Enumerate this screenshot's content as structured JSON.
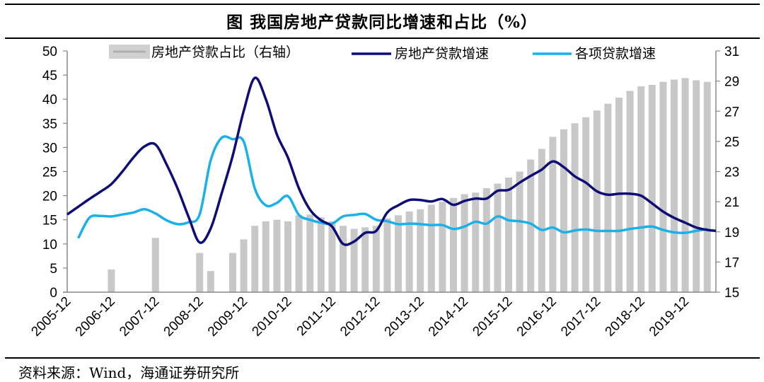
{
  "title": "图  我国房地产贷款同比增速和占比（%）",
  "source": "资料来源：Wind，海通证券研究所",
  "chart_data": {
    "type": "bar+line",
    "title": "图  我国房地产贷款同比增速和占比（%）",
    "xlabel": "",
    "ylabel": "",
    "ylim_left": [
      0,
      50
    ],
    "yticks_left": [
      "0",
      "5",
      "10",
      "15",
      "20",
      "25",
      "30",
      "35",
      "40",
      "45",
      "50"
    ],
    "ylim_right": [
      15,
      31
    ],
    "yticks_right": [
      "15",
      "17",
      "19",
      "21",
      "23",
      "25",
      "27",
      "29",
      "31"
    ],
    "xtick_labels": [
      "2005-12",
      "2006-12",
      "2007-12",
      "2008-12",
      "2009-12",
      "2010-12",
      "2011-12",
      "2012-12",
      "2013-12",
      "2014-12",
      "2015-12",
      "2016-12",
      "2017-12",
      "2018-12",
      "2019-12"
    ],
    "legend_position": "top",
    "periods_note": "quarterly, 2005-12 to 2020-06",
    "series": [
      {
        "name": "房地产贷款占比（右轴）",
        "type": "bar",
        "axis": "right",
        "color": "#c8c8c8",
        "values": [
          null,
          null,
          null,
          null,
          16.5,
          null,
          null,
          null,
          18.6,
          null,
          null,
          null,
          17.6,
          16.4,
          null,
          17.6,
          18.5,
          19.4,
          19.7,
          19.8,
          19.7,
          20.1,
          20.15,
          19.96,
          19.7,
          19.4,
          19.2,
          19.3,
          19.4,
          19.9,
          20.1,
          20.35,
          20.5,
          20.8,
          21.0,
          21.25,
          21.5,
          21.6,
          21.9,
          22.2,
          22.6,
          23.0,
          23.8,
          24.5,
          25.3,
          25.8,
          26.2,
          26.6,
          27.05,
          27.5,
          27.9,
          28.35,
          28.65,
          28.75,
          28.95,
          29.1,
          29.2,
          29.05,
          28.95
        ]
      },
      {
        "name": "房地产贷款增速",
        "type": "line",
        "axis": "left",
        "color": "#0d0d78",
        "values": [
          16.1,
          17.7,
          19.3,
          20.8,
          22.4,
          25.0,
          27.9,
          30.2,
          30.6,
          26.5,
          21.5,
          15.6,
          10.3,
          13.2,
          20.5,
          28.3,
          37.6,
          44.4,
          40.0,
          32.7,
          27.9,
          21.5,
          17.1,
          14.9,
          13.6,
          10.0,
          10.5,
          12.3,
          12.7,
          16.5,
          18.0,
          19.1,
          19.1,
          18.8,
          19.3,
          18.1,
          18.9,
          19.4,
          19.4,
          21.0,
          21.2,
          22.7,
          24.1,
          25.4,
          27.1,
          25.9,
          24.0,
          22.7,
          20.9,
          20.2,
          20.4,
          20.4,
          20.0,
          18.4,
          16.7,
          15.4,
          14.4,
          13.4,
          12.9
        ]
      },
      {
        "name": "各项贷款增速",
        "type": "line",
        "axis": "left",
        "color": "#1ab0ea",
        "values": [
          null,
          11.2,
          15.4,
          15.8,
          15.7,
          16.1,
          16.5,
          17.2,
          16.3,
          14.9,
          14.1,
          14.5,
          16.1,
          27.3,
          32.0,
          31.7,
          31.2,
          21.5,
          18.0,
          18.5,
          19.9,
          16.0,
          15.0,
          14.4,
          14.2,
          15.7,
          16.0,
          16.2,
          15.0,
          14.7,
          14.1,
          14.2,
          14.1,
          13.9,
          13.9,
          13.1,
          13.6,
          14.6,
          14.2,
          15.7,
          14.9,
          14.7,
          14.2,
          12.9,
          13.4,
          12.4,
          12.8,
          13.0,
          12.7,
          12.7,
          12.7,
          13.1,
          13.4,
          13.6,
          12.9,
          12.4,
          12.3,
          12.7,
          13.1
        ]
      }
    ]
  }
}
